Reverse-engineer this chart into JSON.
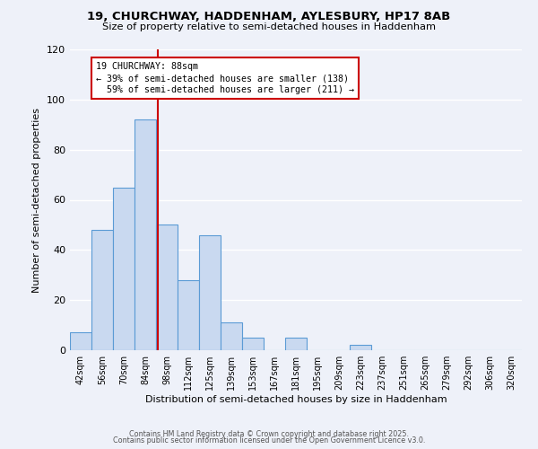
{
  "title1": "19, CHURCHWAY, HADDENHAM, AYLESBURY, HP17 8AB",
  "title2": "Size of property relative to semi-detached houses in Haddenham",
  "xlabel": "Distribution of semi-detached houses by size in Haddenham",
  "ylabel": "Number of semi-detached properties",
  "bar_labels": [
    "42sqm",
    "56sqm",
    "70sqm",
    "84sqm",
    "98sqm",
    "112sqm",
    "125sqm",
    "139sqm",
    "153sqm",
    "167sqm",
    "181sqm",
    "195sqm",
    "209sqm",
    "223sqm",
    "237sqm",
    "251sqm",
    "265sqm",
    "279sqm",
    "292sqm",
    "306sqm",
    "320sqm"
  ],
  "bar_heights": [
    7,
    48,
    65,
    92,
    50,
    28,
    46,
    11,
    5,
    0,
    5,
    0,
    0,
    2,
    0,
    0,
    0,
    0,
    0,
    0,
    0
  ],
  "bar_color": "#c9d9f0",
  "bar_edge_color": "#5b9bd5",
  "property_label": "19 CHURCHWAY: 88sqm",
  "pct_smaller": 39,
  "count_smaller": 138,
  "pct_larger": 59,
  "count_larger": 211,
  "vline_color": "#cc0000",
  "vline_x_index": 3.57,
  "annotation_box_color": "#cc0000",
  "ylim": [
    0,
    120
  ],
  "yticks": [
    0,
    20,
    40,
    60,
    80,
    100,
    120
  ],
  "footer1": "Contains HM Land Registry data © Crown copyright and database right 2025.",
  "footer2": "Contains public sector information licensed under the Open Government Licence v3.0.",
  "background_color": "#eef1f9",
  "grid_color": "#ffffff"
}
